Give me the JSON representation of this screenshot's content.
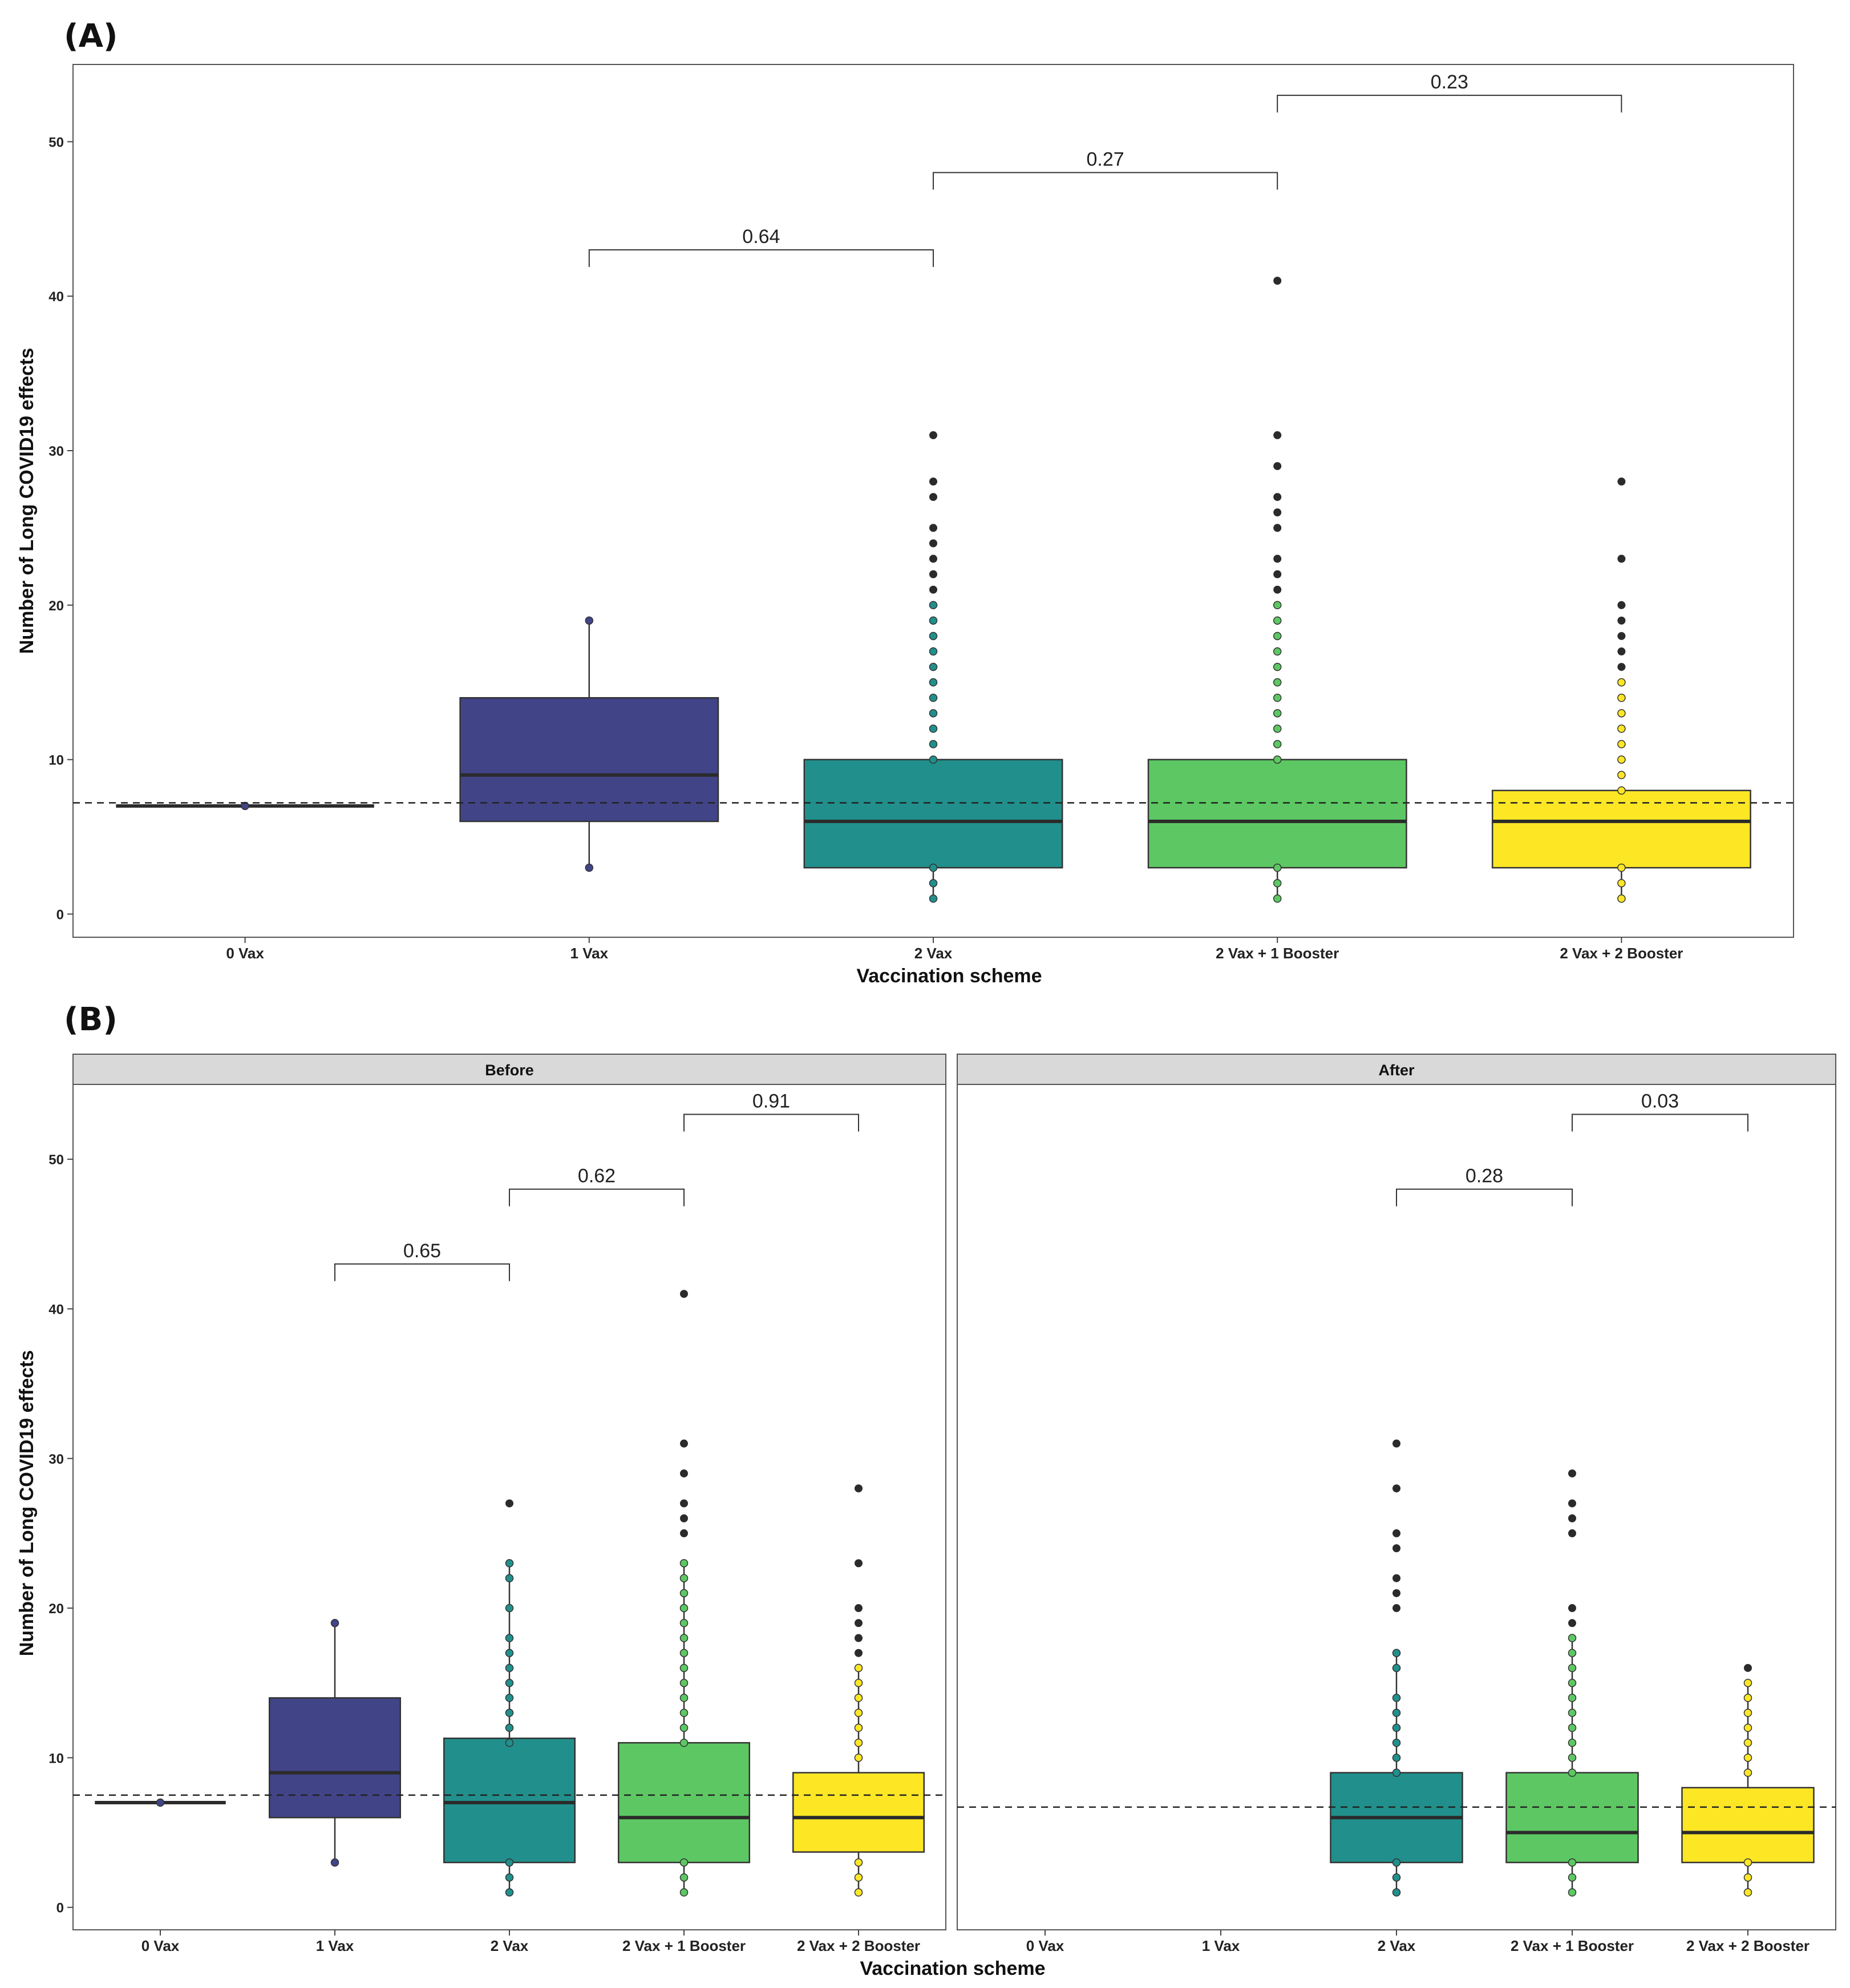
{
  "figure": {
    "panel_a_label": "(A)",
    "panel_b_label": "(B)"
  },
  "chart_data": [
    {
      "id": "A",
      "type": "box",
      "title": "",
      "xlabel": "Vaccination scheme",
      "ylabel": "Number of Long COVID19 effects",
      "ylim": [
        -1.5,
        55
      ],
      "yticks": [
        0,
        10,
        20,
        30,
        40,
        50
      ],
      "reference_line": 7.2,
      "colors": [
        "#414487",
        "#414487",
        "#21908C",
        "#5DC863",
        "#FDE725"
      ],
      "facets": [
        {
          "strip": "",
          "categories": [
            "0 Vax",
            "1 Vax",
            "2 Vax",
            "2 Vax + 1 Booster",
            "2 Vax + 2 Booster"
          ],
          "boxes": [
            {
              "category": "0 Vax",
              "q1": 7,
              "median": 7,
              "q3": 7,
              "wlo": 7,
              "whi": 7,
              "points": [
                7
              ],
              "outliers": []
            },
            {
              "category": "1 Vax",
              "q1": 6,
              "median": 9,
              "q3": 14,
              "wlo": 3,
              "whi": 19,
              "points": [
                3,
                19
              ],
              "outliers": []
            },
            {
              "category": "2 Vax",
              "q1": 3,
              "median": 6,
              "q3": 10,
              "wlo": 1,
              "whi": 10,
              "points": [
                1,
                2,
                3,
                10,
                11,
                12,
                13,
                14,
                15,
                16,
                17,
                18,
                19,
                20
              ],
              "outliers": [
                21,
                22,
                23,
                24,
                25,
                27,
                28,
                31
              ]
            },
            {
              "category": "2 Vax + 1 Booster",
              "q1": 3,
              "median": 6,
              "q3": 10,
              "wlo": 1,
              "whi": 10,
              "points": [
                1,
                2,
                3,
                10,
                11,
                12,
                13,
                14,
                15,
                16,
                17,
                18,
                19,
                20
              ],
              "outliers": [
                21,
                22,
                23,
                25,
                26,
                27,
                29,
                31,
                41
              ]
            },
            {
              "category": "2 Vax + 2 Booster",
              "q1": 3,
              "median": 6,
              "q3": 8,
              "wlo": 1,
              "whi": 8,
              "points": [
                1,
                2,
                3,
                8,
                9,
                10,
                11,
                12,
                13,
                14,
                15
              ],
              "outliers": [
                16,
                17,
                18,
                19,
                20,
                23,
                28
              ]
            }
          ],
          "brackets": [
            {
              "from": 1,
              "to": 2,
              "y": 43,
              "label": "0.64"
            },
            {
              "from": 2,
              "to": 3,
              "y": 48,
              "label": "0.27"
            },
            {
              "from": 3,
              "to": 4,
              "y": 53,
              "label": "0.23"
            }
          ]
        }
      ]
    },
    {
      "id": "B",
      "type": "box",
      "title": "",
      "xlabel": "Vaccination scheme",
      "ylabel": "Number of Long COVID19 effects",
      "ylim": [
        -1.5,
        55
      ],
      "yticks": [
        0,
        10,
        20,
        30,
        40,
        50
      ],
      "colors": [
        "#414487",
        "#414487",
        "#21908C",
        "#5DC863",
        "#FDE725"
      ],
      "facets": [
        {
          "strip": "Before",
          "reference_line": 7.5,
          "categories": [
            "0 Vax",
            "1 Vax",
            "2 Vax",
            "2 Vax + 1 Booster",
            "2 Vax + 2 Booster"
          ],
          "boxes": [
            {
              "category": "0 Vax",
              "q1": 7,
              "median": 7,
              "q3": 7,
              "wlo": 7,
              "whi": 7,
              "points": [
                7
              ],
              "outliers": []
            },
            {
              "category": "1 Vax",
              "q1": 6,
              "median": 9,
              "q3": 14,
              "wlo": 3,
              "whi": 19,
              "points": [
                3,
                19
              ],
              "outliers": []
            },
            {
              "category": "2 Vax",
              "q1": 3,
              "median": 7,
              "q3": 11.3,
              "wlo": 1,
              "whi": 23,
              "points": [
                1,
                2,
                3,
                11,
                12,
                13,
                14,
                15,
                16,
                17,
                18,
                20,
                22,
                23
              ],
              "outliers": [
                27
              ]
            },
            {
              "category": "2 Vax + 1 Booster",
              "q1": 3,
              "median": 6,
              "q3": 11,
              "wlo": 1,
              "whi": 23,
              "points": [
                1,
                2,
                3,
                11,
                12,
                13,
                14,
                15,
                16,
                17,
                18,
                19,
                20,
                21,
                22,
                23
              ],
              "outliers": [
                25,
                26,
                27,
                29,
                31,
                41
              ]
            },
            {
              "category": "2 Vax + 2 Booster",
              "q1": 3.7,
              "median": 6,
              "q3": 9,
              "wlo": 1,
              "whi": 16,
              "points": [
                1,
                2,
                3,
                10,
                11,
                12,
                13,
                14,
                15,
                16
              ],
              "outliers": [
                17,
                18,
                19,
                20,
                23,
                28
              ]
            }
          ],
          "brackets": [
            {
              "from": 1,
              "to": 2,
              "y": 43,
              "label": "0.65"
            },
            {
              "from": 2,
              "to": 3,
              "y": 48,
              "label": "0.62"
            },
            {
              "from": 3,
              "to": 4,
              "y": 53,
              "label": "0.91"
            }
          ]
        },
        {
          "strip": "After",
          "reference_line": 6.7,
          "categories": [
            "0 Vax",
            "1 Vax",
            "2 Vax",
            "2 Vax + 1 Booster",
            "2 Vax + 2 Booster"
          ],
          "boxes": [
            {
              "category": "2 Vax",
              "q1": 3,
              "median": 6,
              "q3": 9,
              "wlo": 1,
              "whi": 17,
              "points": [
                1,
                2,
                3,
                9,
                10,
                11,
                12,
                13,
                14,
                16,
                17
              ],
              "outliers": [
                20,
                21,
                22,
                24,
                25,
                28,
                31
              ]
            },
            {
              "category": "2 Vax + 1 Booster",
              "q1": 3,
              "median": 5,
              "q3": 9,
              "wlo": 1,
              "whi": 18,
              "points": [
                1,
                2,
                3,
                9,
                10,
                11,
                12,
                13,
                14,
                15,
                16,
                17,
                18
              ],
              "outliers": [
                19,
                20,
                25,
                26,
                27,
                29
              ]
            },
            {
              "category": "2 Vax + 2 Booster",
              "q1": 3,
              "median": 5,
              "q3": 8,
              "wlo": 1,
              "whi": 15,
              "points": [
                1,
                2,
                3,
                9,
                10,
                11,
                12,
                13,
                14,
                15
              ],
              "outliers": [
                16
              ]
            }
          ],
          "brackets": [
            {
              "from": 2,
              "to": 3,
              "y": 48,
              "label": "0.28"
            },
            {
              "from": 3,
              "to": 4,
              "y": 53,
              "label": "0.03"
            }
          ]
        }
      ]
    }
  ]
}
